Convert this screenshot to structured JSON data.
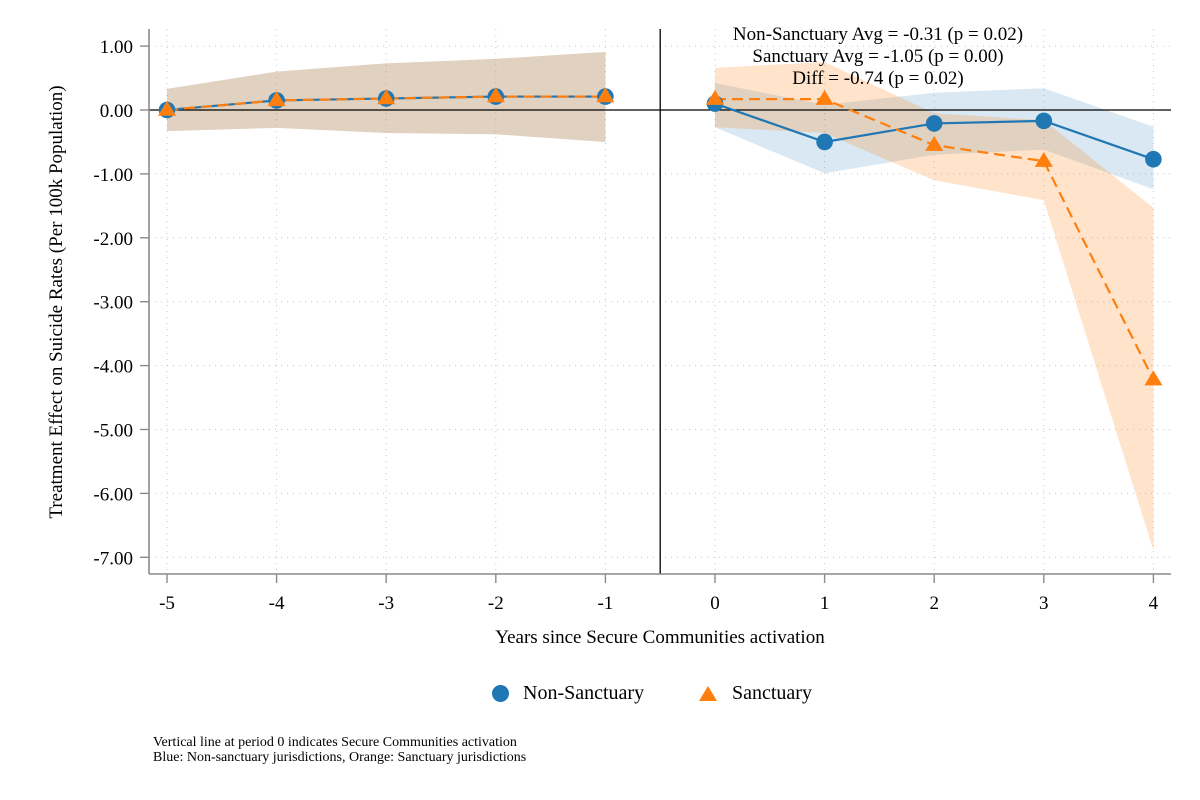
{
  "chart_data": {
    "type": "line",
    "title": "",
    "xlabel": "Years since Secure Communities activation",
    "ylabel": "Treatment Effect on Suicide Rates (Per 100k Population)",
    "x": [
      -5,
      -4,
      -3,
      -2,
      -1,
      0,
      1,
      2,
      3,
      4
    ],
    "xlim": [
      -5.16,
      4.16
    ],
    "ylim": [
      -7.27,
      1.27
    ],
    "x_ticks": [
      "-5",
      "-4",
      "-3",
      "-2",
      "-1",
      "0",
      "1",
      "2",
      "3",
      "4"
    ],
    "y_ticks": [
      {
        "value": 1,
        "label": "1.00"
      },
      {
        "value": 0,
        "label": "0.00"
      },
      {
        "value": -1,
        "label": "-1.00"
      },
      {
        "value": -2,
        "label": "-2.00"
      },
      {
        "value": -3,
        "label": "-3.00"
      },
      {
        "value": -4,
        "label": "-4.00"
      },
      {
        "value": -5,
        "label": "-5.00"
      },
      {
        "value": -6,
        "label": "-6.00"
      },
      {
        "value": -7,
        "label": "-7.00"
      }
    ],
    "grid": true,
    "reference_lines": {
      "horizontal_y": 0,
      "vertical_x": -0.5
    },
    "series": [
      {
        "name": "Non-Sanctuary",
        "color": "#1f77b4",
        "band_color": "#1f77b4",
        "marker": "circle",
        "line_style": "solid",
        "values": [
          0.0,
          0.15,
          0.18,
          0.21,
          0.21,
          0.1,
          -0.5,
          -0.21,
          -0.17,
          -0.77
        ],
        "ci_upper": [
          0.33,
          0.6,
          0.73,
          0.8,
          0.91,
          0.42,
          0.08,
          0.27,
          0.34,
          -0.26
        ],
        "ci_lower": [
          -0.33,
          -0.28,
          -0.36,
          -0.38,
          -0.5,
          -0.27,
          -0.99,
          -0.7,
          -0.62,
          -1.24
        ]
      },
      {
        "name": "Sanctuary",
        "color": "#ff7f0e",
        "band_color": "#ff7f0e",
        "marker": "triangle",
        "line_style": "dashed",
        "values": [
          0.0,
          0.15,
          0.18,
          0.21,
          0.21,
          0.17,
          0.17,
          -0.55,
          -0.8,
          -4.22
        ],
        "ci_upper": [
          0.33,
          0.6,
          0.73,
          0.8,
          0.91,
          0.66,
          0.75,
          -0.05,
          -0.16,
          -1.53
        ],
        "ci_lower": [
          -0.33,
          -0.28,
          -0.36,
          -0.38,
          -0.5,
          -0.27,
          -0.36,
          -1.1,
          -1.41,
          -6.89
        ]
      }
    ],
    "annotations": [
      "Non-Sanctuary Avg = -0.31 (p = 0.02)",
      "Sanctuary Avg = -1.05 (p = 0.00)",
      "Diff = -0.74 (p = 0.02)"
    ],
    "legend": {
      "placement": "bottom",
      "entries": [
        "Non-Sanctuary",
        "Sanctuary"
      ]
    },
    "notes": [
      "Vertical line at period 0 indicates Secure Communities activation",
      "Blue: Non-sanctuary jurisdictions, Orange: Sanctuary jurisdictions"
    ]
  }
}
